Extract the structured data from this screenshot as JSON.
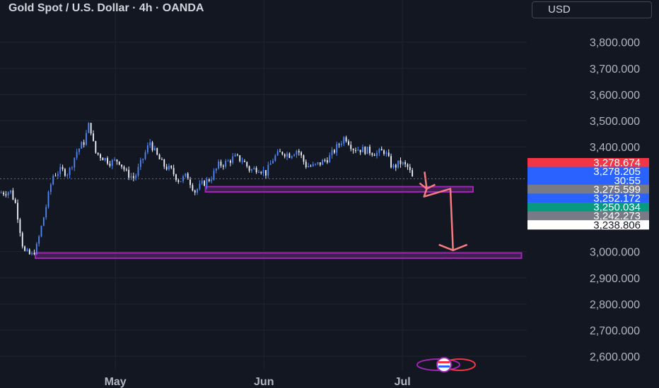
{
  "header": {
    "title": "Gold Spot / U.S. Dollar · 4h · OANDA",
    "currency": "USD"
  },
  "colors": {
    "background": "#131722",
    "grid": "#1f2430",
    "candle_up": "#4f86f7",
    "candle_down": "#f0f3fa",
    "zone": "#9c27b0",
    "arrow": "#f77c80",
    "price_line": "#5b6aa8"
  },
  "chart_data": {
    "type": "candlestick",
    "symbol": "XAUUSD",
    "ylim": [
      2560,
      3880
    ],
    "y_ticks": [
      {
        "value": 3800,
        "label": "3,800.000"
      },
      {
        "value": 3700,
        "label": "3,700.000"
      },
      {
        "value": 3600,
        "label": "3,600.000"
      },
      {
        "value": 3500,
        "label": "3,500.000"
      },
      {
        "value": 3400,
        "label": "3,400.000"
      },
      {
        "value": 3000,
        "label": "3,000.000"
      },
      {
        "value": 2900,
        "label": "2,900.000"
      },
      {
        "value": 2800,
        "label": "2,800.000"
      },
      {
        "value": 2700,
        "label": "2,700.000"
      },
      {
        "value": 2600,
        "label": "2,600.000"
      }
    ],
    "x_ticks": [
      {
        "label": "May",
        "frac": 0.219
      },
      {
        "label": "Jun",
        "frac": 0.501
      },
      {
        "label": "Jul",
        "frac": 0.764
      }
    ],
    "close_path": [
      [
        0.0,
        3225
      ],
      [
        0.02,
        3230
      ],
      [
        0.03,
        3180
      ],
      [
        0.045,
        3000
      ],
      [
        0.06,
        2985
      ],
      [
        0.07,
        3020
      ],
      [
        0.085,
        3150
      ],
      [
        0.1,
        3290
      ],
      [
        0.115,
        3310
      ],
      [
        0.13,
        3300
      ],
      [
        0.145,
        3380
      ],
      [
        0.16,
        3420
      ],
      [
        0.17,
        3495
      ],
      [
        0.18,
        3380
      ],
      [
        0.195,
        3360
      ],
      [
        0.21,
        3340
      ],
      [
        0.225,
        3350
      ],
      [
        0.24,
        3300
      ],
      [
        0.255,
        3280
      ],
      [
        0.27,
        3350
      ],
      [
        0.285,
        3420
      ],
      [
        0.295,
        3375
      ],
      [
        0.31,
        3330
      ],
      [
        0.325,
        3310
      ],
      [
        0.34,
        3270
      ],
      [
        0.355,
        3290
      ],
      [
        0.37,
        3230
      ],
      [
        0.385,
        3260
      ],
      [
        0.4,
        3280
      ],
      [
        0.415,
        3330
      ],
      [
        0.43,
        3340
      ],
      [
        0.445,
        3360
      ],
      [
        0.46,
        3350
      ],
      [
        0.475,
        3310
      ],
      [
        0.49,
        3320
      ],
      [
        0.505,
        3300
      ],
      [
        0.52,
        3360
      ],
      [
        0.535,
        3380
      ],
      [
        0.55,
        3370
      ],
      [
        0.565,
        3390
      ],
      [
        0.58,
        3330
      ],
      [
        0.595,
        3325
      ],
      [
        0.61,
        3340
      ],
      [
        0.625,
        3360
      ],
      [
        0.64,
        3400
      ],
      [
        0.655,
        3440
      ],
      [
        0.67,
        3395
      ],
      [
        0.685,
        3390
      ],
      [
        0.7,
        3385
      ],
      [
        0.715,
        3375
      ],
      [
        0.73,
        3385
      ],
      [
        0.745,
        3320
      ],
      [
        0.76,
        3340
      ],
      [
        0.775,
        3320
      ],
      [
        0.785,
        3270
      ]
    ],
    "candle_count": 175,
    "zones": [
      {
        "name": "upper-zone",
        "x_start_frac": 0.39,
        "x_end_frac": 0.898,
        "top": 3248,
        "bottom": 3228
      },
      {
        "name": "lower-zone",
        "x_start_frac": 0.067,
        "x_end_frac": 0.99,
        "top": 2995,
        "bottom": 2975
      }
    ],
    "projection": [
      [
        0.806,
        3305
      ],
      [
        0.81,
        3240
      ],
      [
        0.805,
        3210
      ],
      [
        0.855,
        3240
      ],
      [
        0.86,
        3005
      ]
    ],
    "current_price": 3278.205,
    "price_labels": [
      {
        "text": "3,278.674",
        "bg": "#f23645",
        "fg": "#ffffff"
      },
      {
        "text": "3,278.205",
        "bg": "#2962ff",
        "fg": "#ffffff"
      },
      {
        "text": "30:55",
        "bg": "#2962ff",
        "fg": "#ffffff"
      },
      {
        "text": "3,275.599",
        "bg": "#787b86",
        "fg": "#ffffff"
      },
      {
        "text": "3,252.172",
        "bg": "#2962ff",
        "fg": "#ffffff"
      },
      {
        "text": "3,250.034",
        "bg": "#089981",
        "fg": "#ffffff"
      },
      {
        "text": "3,242.273",
        "bg": "#787b86",
        "fg": "#ffffff"
      },
      {
        "text": "3,238.806",
        "bg": "#ffffff",
        "fg": "#131722"
      }
    ],
    "grid": true
  }
}
